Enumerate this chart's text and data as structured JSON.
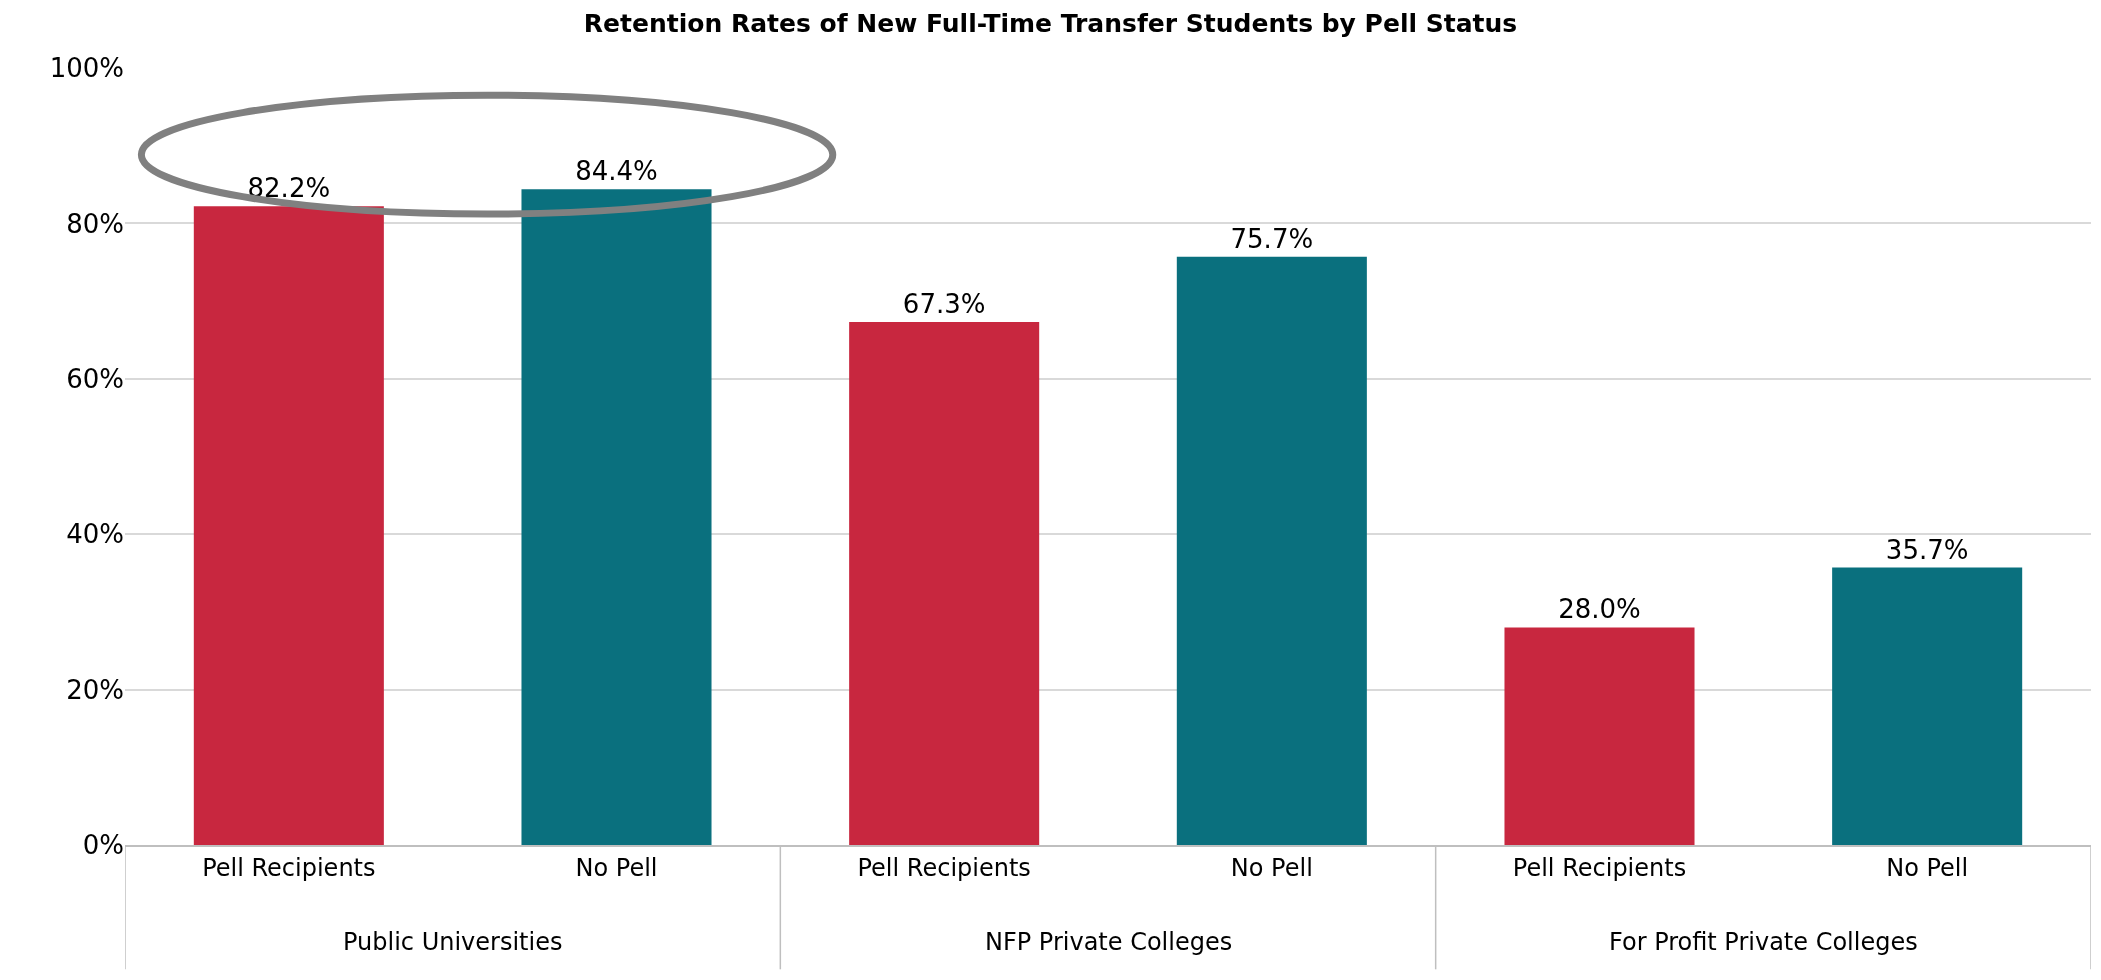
{
  "chart_data": {
    "type": "bar",
    "title": "Retention Rates of New Full-Time Transfer Students by Pell Status",
    "categories": [
      "Pell Recipients",
      "No Pell",
      "Pell Recipients",
      "No Pell",
      "Pell Recipients",
      "No Pell"
    ],
    "values": [
      82.2,
      84.4,
      67.3,
      75.7,
      28.0,
      35.7
    ],
    "value_labels": [
      "82.2%",
      "84.4%",
      "67.3%",
      "75.7%",
      "28.0%",
      "35.7%"
    ],
    "colors": [
      "#c8273f",
      "#0a707e",
      "#c8273f",
      "#0a707e",
      "#c8273f",
      "#0a707e"
    ],
    "ylim": [
      0,
      100
    ],
    "yticks": [
      {
        "value": 0,
        "label": "0%"
      },
      {
        "value": 20,
        "label": "20%"
      },
      {
        "value": 40,
        "label": "40%"
      },
      {
        "value": 60,
        "label": "60%"
      },
      {
        "value": 80,
        "label": "80%"
      },
      {
        "value": 100,
        "label": "100%"
      }
    ],
    "grid": "y",
    "legend": false,
    "annotations": [
      "Public Universities",
      "NFP Private Colleges",
      "For Profit Private Colleges"
    ]
  }
}
